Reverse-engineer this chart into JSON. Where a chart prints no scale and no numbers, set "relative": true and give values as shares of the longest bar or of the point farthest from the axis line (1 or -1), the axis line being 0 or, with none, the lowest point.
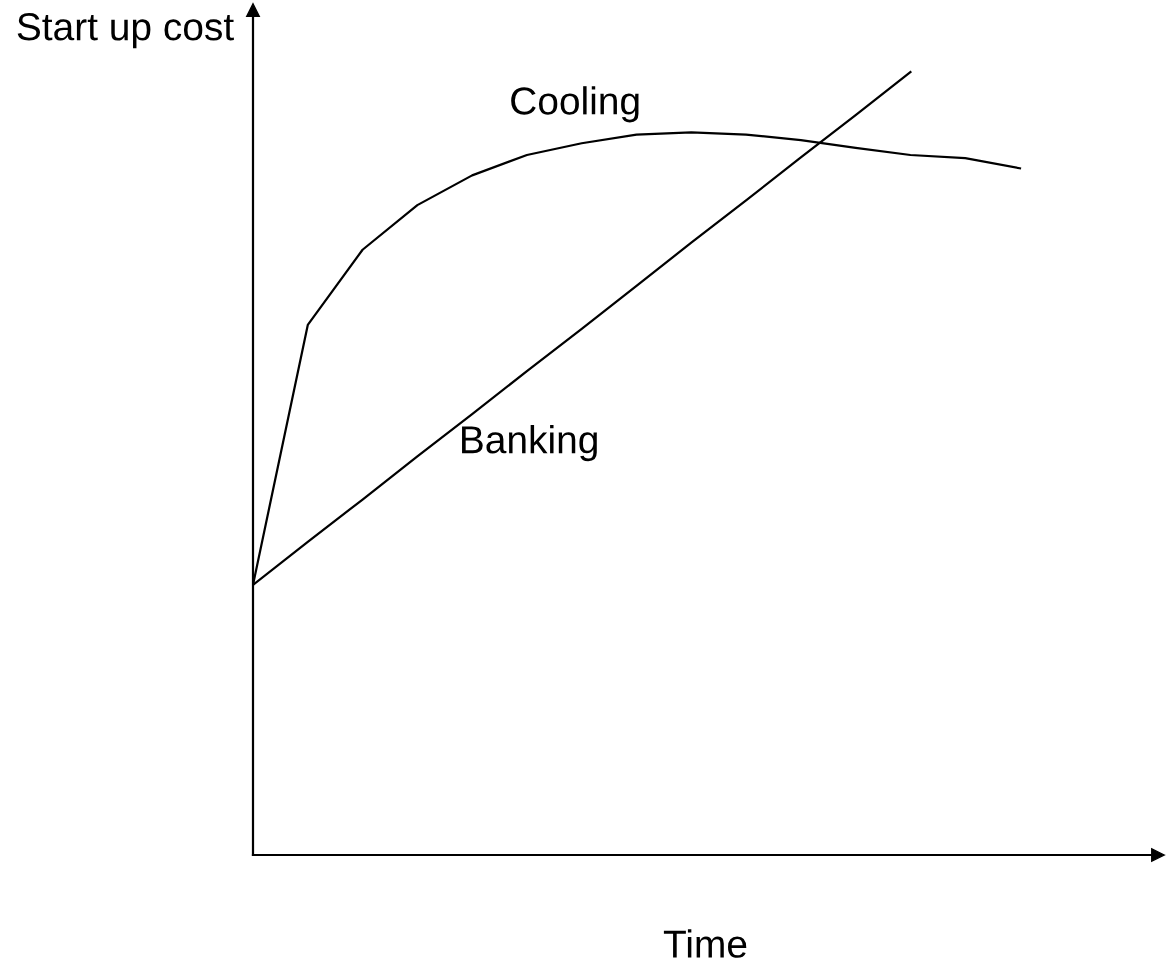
{
  "chart_data": {
    "type": "line",
    "relative": true,
    "ylabel": "Start up cost",
    "xlabel": "Time",
    "legend": false,
    "marker": "none",
    "line_style": "solid",
    "categories": [
      null,
      null,
      null,
      null,
      null,
      null,
      null,
      null,
      null,
      null,
      null,
      null,
      null,
      null,
      null
    ],
    "series": [
      {
        "name": "Cooling",
        "color": "#000000",
        "values": [
          0.345,
          0.677,
          0.773,
          0.83,
          0.868,
          0.894,
          0.909,
          0.92,
          0.923,
          0.92,
          0.913,
          0.903,
          0.894,
          0.89,
          0.877
        ]
      },
      {
        "name": "Banking",
        "color": "#000000",
        "values": [
          0.345,
          0.4,
          0.454,
          0.509,
          0.563,
          0.618,
          0.672,
          0.727,
          0.782,
          0.836,
          0.891,
          0.945,
          1.0,
          null,
          null
        ]
      }
    ]
  }
}
